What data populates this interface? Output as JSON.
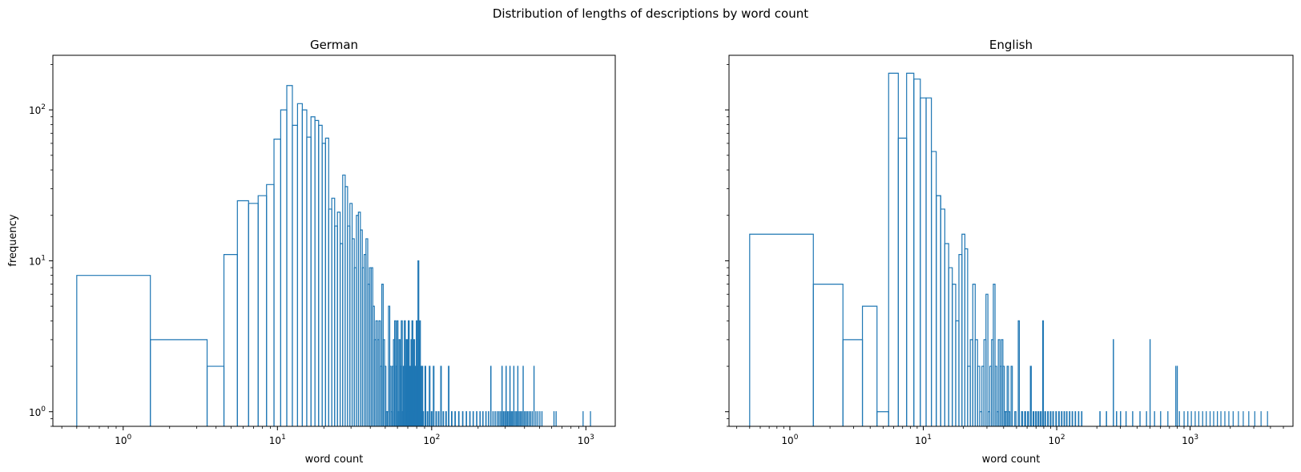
{
  "figure": {
    "suptitle": "Distribution of lengths of descriptions by word count"
  },
  "chart_data": [
    {
      "type": "histogram-step",
      "title": "German",
      "xlabel": "word count",
      "ylabel": "frequency",
      "xscale": "log",
      "yscale": "log",
      "xlim": [
        0.35,
        1550
      ],
      "ylim": [
        0.8,
        230
      ],
      "xticks": [
        {
          "value": 1,
          "base": "10",
          "exp": "0"
        },
        {
          "value": 10,
          "base": "10",
          "exp": "1"
        },
        {
          "value": 100,
          "base": "10",
          "exp": "2"
        },
        {
          "value": 1000,
          "base": "10",
          "exp": "3"
        }
      ],
      "yticks": [
        {
          "value": 1,
          "base": "10",
          "exp": "0"
        },
        {
          "value": 10,
          "base": "10",
          "exp": "1"
        },
        {
          "value": 100,
          "base": "10",
          "exp": "2"
        }
      ],
      "color": "#1f77b4",
      "grid": false,
      "bins": [
        [
          0.5,
          1.5,
          8
        ],
        [
          1.5,
          3.5,
          3
        ],
        [
          3.5,
          4.5,
          2
        ],
        [
          4.5,
          5.5,
          11
        ],
        [
          5.5,
          6.5,
          25
        ],
        [
          6.5,
          7.5,
          24
        ],
        [
          7.5,
          8.5,
          27
        ],
        [
          8.5,
          9.5,
          32
        ],
        [
          9.5,
          10.5,
          64
        ],
        [
          10.5,
          11.5,
          100
        ],
        [
          11.5,
          12.5,
          145
        ],
        [
          12.5,
          13.5,
          79
        ],
        [
          13.5,
          14.5,
          110
        ],
        [
          14.5,
          15.5,
          100
        ],
        [
          15.5,
          16.5,
          66
        ],
        [
          16.5,
          17.5,
          90
        ],
        [
          17.5,
          18.5,
          85
        ],
        [
          18.5,
          19.5,
          79
        ],
        [
          19.5,
          20.5,
          60
        ],
        [
          20.5,
          21.5,
          65
        ],
        [
          21.5,
          22.5,
          22
        ],
        [
          22.5,
          23.5,
          26
        ],
        [
          23.5,
          24.5,
          17
        ],
        [
          24.5,
          25.5,
          21
        ],
        [
          25.5,
          26.5,
          13
        ],
        [
          26.5,
          27.5,
          37
        ],
        [
          27.5,
          28.5,
          31
        ],
        [
          28.5,
          29.5,
          17
        ],
        [
          29.5,
          30.5,
          24
        ],
        [
          30.5,
          31.5,
          14
        ],
        [
          31.5,
          32.5,
          9
        ],
        [
          32.5,
          33.5,
          20
        ],
        [
          33.5,
          34.5,
          21
        ],
        [
          34.5,
          35.5,
          16
        ],
        [
          35.5,
          36.5,
          9
        ],
        [
          36.5,
          37.5,
          11
        ],
        [
          37.5,
          38.5,
          14
        ],
        [
          38.5,
          39.5,
          7
        ],
        [
          39.5,
          40.5,
          9
        ],
        [
          40.5,
          41.5,
          9
        ],
        [
          41.5,
          42.5,
          5
        ],
        [
          42.5,
          43.5,
          3
        ],
        [
          43.5,
          44.5,
          4
        ],
        [
          44.5,
          45.5,
          3
        ],
        [
          45.5,
          46.5,
          4
        ],
        [
          46.5,
          47.5,
          2
        ],
        [
          47.5,
          48.5,
          7
        ],
        [
          48.5,
          49.5,
          3
        ],
        [
          49.5,
          50.5,
          2
        ],
        [
          50.5,
          51.5,
          1
        ],
        [
          51.5,
          52.5,
          1
        ],
        [
          52.5,
          53.5,
          5
        ],
        [
          53.5,
          54.5,
          2
        ],
        [
          54.5,
          55.5,
          1
        ],
        [
          55.5,
          56.5,
          2
        ],
        [
          56.5,
          57.5,
          3
        ],
        [
          57.5,
          58.5,
          4
        ],
        [
          58.5,
          59.5,
          2
        ],
        [
          59.5,
          60.5,
          4
        ],
        [
          60.5,
          61.5,
          1
        ],
        [
          61.5,
          62.5,
          3
        ],
        [
          62.5,
          63.5,
          2
        ],
        [
          63.5,
          64.5,
          4
        ],
        [
          64.5,
          65.5,
          1
        ],
        [
          65.5,
          66.5,
          2
        ],
        [
          66.5,
          67.5,
          4
        ],
        [
          67.5,
          68.5,
          2
        ],
        [
          68.5,
          69.5,
          3
        ],
        [
          69.5,
          70.5,
          1
        ],
        [
          70.5,
          71.5,
          4
        ],
        [
          71.5,
          72.5,
          2
        ],
        [
          72.5,
          73.5,
          1
        ],
        [
          73.5,
          74.5,
          3
        ],
        [
          74.5,
          75.5,
          4
        ],
        [
          75.5,
          76.5,
          2
        ],
        [
          76.5,
          77.5,
          3
        ],
        [
          77.5,
          78.5,
          1
        ],
        [
          78.5,
          79.5,
          2
        ],
        [
          79.5,
          80.5,
          4
        ],
        [
          80.5,
          81.5,
          2
        ],
        [
          81.5,
          82.5,
          10
        ],
        [
          82.5,
          83.5,
          3
        ],
        [
          83.5,
          84.5,
          4
        ],
        [
          84.5,
          85.5,
          2
        ],
        [
          85.5,
          86.5,
          1
        ],
        [
          86.5,
          87.5,
          2
        ],
        [
          87.5,
          88.5,
          1
        ],
        [
          90.5,
          91.5,
          2
        ],
        [
          93.5,
          94.5,
          1
        ],
        [
          96.5,
          97.5,
          2
        ],
        [
          99.5,
          100.5,
          1
        ],
        [
          102.5,
          103.5,
          2
        ],
        [
          106.5,
          107.5,
          1
        ],
        [
          110.5,
          111.5,
          1
        ],
        [
          114.5,
          115.5,
          2
        ],
        [
          118.5,
          119.5,
          1
        ],
        [
          123.5,
          124.5,
          1
        ],
        [
          128.5,
          129.5,
          2
        ],
        [
          134.5,
          135.5,
          1
        ],
        [
          141.5,
          142.5,
          1
        ],
        [
          149.5,
          150.5,
          1
        ],
        [
          158.5,
          159.5,
          1
        ],
        [
          167.5,
          168.5,
          1
        ],
        [
          176.5,
          177.5,
          1
        ],
        [
          185.5,
          186.5,
          1
        ],
        [
          195.5,
          196.5,
          1
        ],
        [
          205.5,
          206.5,
          1
        ],
        [
          214.5,
          215.5,
          1
        ],
        [
          224.5,
          225.5,
          1
        ],
        [
          233.5,
          234.5,
          1
        ],
        [
          241.5,
          242.5,
          2
        ],
        [
          249.5,
          250.5,
          1
        ],
        [
          257.5,
          258.5,
          1
        ],
        [
          265.5,
          266.5,
          1
        ],
        [
          272.5,
          273.5,
          1
        ],
        [
          279.5,
          280.5,
          1
        ],
        [
          285.5,
          286.5,
          2
        ],
        [
          291.5,
          292.5,
          1
        ],
        [
          297.5,
          298.5,
          1
        ],
        [
          303.5,
          304.5,
          2
        ],
        [
          309.5,
          310.5,
          1
        ],
        [
          315.5,
          316.5,
          1
        ],
        [
          321.5,
          322.5,
          2
        ],
        [
          327.5,
          328.5,
          1
        ],
        [
          333.5,
          334.5,
          1
        ],
        [
          340.5,
          341.5,
          2
        ],
        [
          347.5,
          348.5,
          1
        ],
        [
          354.5,
          355.5,
          1
        ],
        [
          361.5,
          362.5,
          2
        ],
        [
          368.5,
          369.5,
          1
        ],
        [
          375.5,
          376.5,
          1
        ],
        [
          383.5,
          384.5,
          1
        ],
        [
          391.5,
          392.5,
          2
        ],
        [
          399.5,
          400.5,
          1
        ],
        [
          408.5,
          409.5,
          1
        ],
        [
          417.5,
          418.5,
          1
        ],
        [
          427.5,
          428.5,
          1
        ],
        [
          437.5,
          438.5,
          1
        ],
        [
          448.5,
          449.5,
          1
        ],
        [
          460.5,
          461.5,
          2
        ],
        [
          473.5,
          474.5,
          1
        ],
        [
          487.5,
          488.5,
          1
        ],
        [
          502.5,
          503.5,
          1
        ],
        [
          518.5,
          519.5,
          1
        ],
        [
          620.5,
          621.5,
          1
        ],
        [
          640.5,
          641.5,
          1
        ],
        [
          958.5,
          959.5,
          1
        ],
        [
          1070.5,
          1071.5,
          1
        ]
      ]
    },
    {
      "type": "histogram-step",
      "title": "English",
      "xlabel": "word count",
      "ylabel": "",
      "xscale": "log",
      "yscale": "log",
      "xlim": [
        0.35,
        5900
      ],
      "ylim": [
        0.8,
        230
      ],
      "xticks": [
        {
          "value": 1,
          "base": "10",
          "exp": "0"
        },
        {
          "value": 10,
          "base": "10",
          "exp": "1"
        },
        {
          "value": 100,
          "base": "10",
          "exp": "2"
        },
        {
          "value": 1000,
          "base": "10",
          "exp": "3"
        }
      ],
      "yticks": [
        {
          "value": 1,
          "base": "",
          "exp": ""
        },
        {
          "value": 10,
          "base": "",
          "exp": ""
        },
        {
          "value": 100,
          "base": "",
          "exp": ""
        }
      ],
      "color": "#1f77b4",
      "grid": false,
      "bins": [
        [
          0.5,
          1.5,
          15
        ],
        [
          1.5,
          2.5,
          7
        ],
        [
          2.5,
          3.5,
          3
        ],
        [
          3.5,
          4.5,
          5
        ],
        [
          4.5,
          5.5,
          1
        ],
        [
          5.5,
          6.5,
          175
        ],
        [
          6.5,
          7.5,
          65
        ],
        [
          7.5,
          8.5,
          175
        ],
        [
          8.5,
          9.5,
          160
        ],
        [
          9.5,
          10.5,
          120
        ],
        [
          10.5,
          11.5,
          120
        ],
        [
          11.5,
          12.5,
          53
        ],
        [
          12.5,
          13.5,
          27
        ],
        [
          12.5,
          13.5,
          27
        ],
        [
          13.5,
          14.5,
          22
        ],
        [
          14.5,
          15.5,
          13
        ],
        [
          15.5,
          16.5,
          9
        ],
        [
          16.5,
          17.5,
          7
        ],
        [
          17.5,
          18.5,
          4
        ],
        [
          18.5,
          19.5,
          11
        ],
        [
          19.5,
          20.5,
          15
        ],
        [
          20.5,
          21.5,
          12
        ],
        [
          21.5,
          22.5,
          2
        ],
        [
          22.5,
          23.5,
          3
        ],
        [
          23.5,
          24.5,
          7
        ],
        [
          24.5,
          25.5,
          3
        ],
        [
          25.5,
          26.5,
          2
        ],
        [
          26.5,
          27.5,
          1
        ],
        [
          27.5,
          28.5,
          2
        ],
        [
          28.5,
          29.5,
          3
        ],
        [
          29.5,
          30.5,
          6
        ],
        [
          30.5,
          31.5,
          1
        ],
        [
          31.5,
          32.5,
          2
        ],
        [
          32.5,
          33.5,
          3
        ],
        [
          33.5,
          34.5,
          7
        ],
        [
          34.5,
          35.5,
          2
        ],
        [
          35.5,
          36.5,
          1
        ],
        [
          36.5,
          37.5,
          3
        ],
        [
          37.5,
          38.5,
          2
        ],
        [
          38.5,
          39.5,
          3
        ],
        [
          39.5,
          40.5,
          2
        ],
        [
          40.5,
          41.5,
          1
        ],
        [
          41.5,
          42.5,
          1
        ],
        [
          42.5,
          43.5,
          2
        ],
        [
          43.5,
          44.5,
          1
        ],
        [
          45.5,
          46.5,
          2
        ],
        [
          48.5,
          49.5,
          1
        ],
        [
          51.5,
          52.5,
          4
        ],
        [
          54.5,
          55.5,
          1
        ],
        [
          57.5,
          58.5,
          1
        ],
        [
          60.5,
          61.5,
          1
        ],
        [
          63.5,
          64.5,
          2
        ],
        [
          66.5,
          67.5,
          1
        ],
        [
          69.5,
          70.5,
          1
        ],
        [
          72.5,
          73.5,
          1
        ],
        [
          75.5,
          76.5,
          1
        ],
        [
          78.5,
          79.5,
          4
        ],
        [
          81.5,
          82.5,
          1
        ],
        [
          85.5,
          86.5,
          1
        ],
        [
          89.5,
          90.5,
          1
        ],
        [
          93.5,
          94.5,
          1
        ],
        [
          98.5,
          99.5,
          1
        ],
        [
          103.5,
          104.5,
          1
        ],
        [
          108.5,
          109.5,
          1
        ],
        [
          113.5,
          114.5,
          1
        ],
        [
          118.5,
          119.5,
          1
        ],
        [
          124.5,
          125.5,
          1
        ],
        [
          130.5,
          131.5,
          1
        ],
        [
          137.5,
          138.5,
          1
        ],
        [
          145.5,
          146.5,
          1
        ],
        [
          153.5,
          154.5,
          1
        ],
        [
          210.5,
          211.5,
          1
        ],
        [
          235.5,
          236.5,
          1
        ],
        [
          265.5,
          266.5,
          3
        ],
        [
          280.5,
          281.5,
          1
        ],
        [
          300.5,
          301.5,
          1
        ],
        [
          330.5,
          331.5,
          1
        ],
        [
          370.5,
          371.5,
          1
        ],
        [
          420.5,
          421.5,
          1
        ],
        [
          470.5,
          471.5,
          1
        ],
        [
          500.5,
          501.5,
          3
        ],
        [
          540.5,
          541.5,
          1
        ],
        [
          600.5,
          601.5,
          1
        ],
        [
          680.5,
          681.5,
          1
        ],
        [
          780.5,
          781.5,
          2
        ],
        [
          800.5,
          801.5,
          2
        ],
        [
          830.5,
          831.5,
          1
        ],
        [
          900.5,
          901.5,
          1
        ],
        [
          960.5,
          961.5,
          1
        ],
        [
          1020.5,
          1021.5,
          1
        ],
        [
          1090.5,
          1091.5,
          1
        ],
        [
          1160.5,
          1161.5,
          1
        ],
        [
          1240.5,
          1241.5,
          1
        ],
        [
          1320.5,
          1321.5,
          1
        ],
        [
          1410.5,
          1411.5,
          1
        ],
        [
          1500.5,
          1501.5,
          1
        ],
        [
          1600.5,
          1601.5,
          1
        ],
        [
          1700.5,
          1701.5,
          1
        ],
        [
          1820.5,
          1821.5,
          1
        ],
        [
          1950.5,
          1951.5,
          1
        ],
        [
          2100.5,
          2101.5,
          1
        ],
        [
          2300.5,
          2301.5,
          1
        ],
        [
          2500.5,
          2501.5,
          1
        ],
        [
          2750.5,
          2751.5,
          1
        ],
        [
          3050.5,
          3051.5,
          1
        ],
        [
          3400.5,
          3401.5,
          1
        ],
        [
          3800.5,
          3801.5,
          1
        ]
      ]
    }
  ]
}
